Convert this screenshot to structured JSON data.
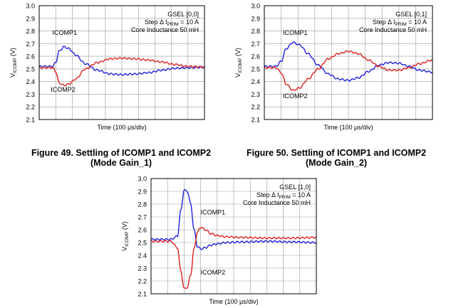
{
  "chart_data": [
    {
      "type": "line",
      "figure_caption": [
        "Figure 49.  Settling of ICOMP1 and ICOMP2",
        "(Mode Gain_1)"
      ],
      "xlabel": "Time (100 μs/div)",
      "ylabel": {
        "main": "V",
        "sub": "ICOMP",
        "unit": " (V)"
      },
      "ylim": [
        2.1,
        3.0
      ],
      "yticks": [
        "3.0",
        "2.9",
        "2.8",
        "2.7",
        "2.6",
        "2.5",
        "2.4",
        "2.3",
        "2.2",
        "2.1"
      ],
      "x_divisions": 10,
      "grid": true,
      "info": {
        "line1": "GSEL [0,0]",
        "line2": {
          "pre": "Step  Δ I",
          "sub": "PRIM",
          "post": " = 10 A"
        },
        "line3": "Core Inductance 50 mH"
      },
      "series": [
        {
          "name": "ICOMP1",
          "color": "#1f1fe0",
          "x": [
            0.0,
            0.4,
            0.8,
            1.0,
            1.2,
            1.5,
            1.8,
            2.2,
            2.8,
            3.5,
            4.3,
            5.0,
            5.8,
            6.6,
            7.4,
            8.2,
            9.0,
            10.0
          ],
          "values": [
            2.52,
            2.52,
            2.52,
            2.55,
            2.64,
            2.675,
            2.66,
            2.61,
            2.54,
            2.49,
            2.46,
            2.455,
            2.46,
            2.47,
            2.49,
            2.505,
            2.51,
            2.515
          ]
        },
        {
          "name": "ICOMP2",
          "color": "#e02020",
          "x": [
            0.0,
            0.4,
            0.8,
            1.0,
            1.2,
            1.5,
            1.8,
            2.2,
            2.8,
            3.5,
            4.3,
            5.0,
            5.8,
            6.6,
            7.4,
            8.2,
            9.0,
            10.0
          ],
          "values": [
            2.51,
            2.51,
            2.51,
            2.48,
            2.39,
            2.37,
            2.38,
            2.42,
            2.5,
            2.55,
            2.58,
            2.585,
            2.58,
            2.57,
            2.555,
            2.535,
            2.52,
            2.515
          ]
        }
      ],
      "series_labels": [
        {
          "text": "ICOMP1",
          "x": 0.8,
          "y": 2.77
        },
        {
          "text": "ICOMP2",
          "x": 0.7,
          "y": 2.32
        }
      ]
    },
    {
      "type": "line",
      "figure_caption": [
        "Figure 50.  Settling of ICOMP1 and ICOMP2",
        "(Mode Gain_2)"
      ],
      "xlabel": "Time (100 μs/div)",
      "ylabel": {
        "main": "V",
        "sub": "ICOMP",
        "unit": " (V)"
      },
      "ylim": [
        2.1,
        3.0
      ],
      "yticks": [
        "3.0",
        "2.9",
        "2.8",
        "2.7",
        "2.6",
        "2.5",
        "2.4",
        "2.3",
        "2.2",
        "2.1"
      ],
      "x_divisions": 10,
      "grid": true,
      "info": {
        "line1": "GSEL [0,1]",
        "line2": {
          "pre": "Step  Δ I",
          "sub": "PRIM",
          "post": " = 10 A"
        },
        "line3": "Core Inductance 50 mH"
      },
      "series": [
        {
          "name": "ICOMP1",
          "color": "#1f1fe0",
          "x": [
            0.0,
            0.7,
            1.0,
            1.3,
            1.7,
            2.1,
            2.6,
            3.2,
            3.8,
            4.4,
            5.0,
            5.6,
            6.2,
            6.8,
            7.4,
            8.0,
            8.6,
            9.2,
            10.0
          ],
          "values": [
            2.52,
            2.52,
            2.56,
            2.66,
            2.71,
            2.69,
            2.62,
            2.53,
            2.46,
            2.42,
            2.41,
            2.43,
            2.48,
            2.53,
            2.55,
            2.545,
            2.52,
            2.49,
            2.475
          ]
        },
        {
          "name": "ICOMP2",
          "color": "#e02020",
          "x": [
            0.0,
            0.7,
            1.0,
            1.3,
            1.7,
            2.1,
            2.6,
            3.2,
            3.8,
            4.4,
            5.0,
            5.6,
            6.2,
            6.8,
            7.4,
            8.0,
            8.6,
            9.2,
            10.0
          ],
          "values": [
            2.51,
            2.51,
            2.47,
            2.38,
            2.33,
            2.35,
            2.42,
            2.5,
            2.58,
            2.62,
            2.64,
            2.62,
            2.57,
            2.52,
            2.49,
            2.49,
            2.51,
            2.54,
            2.57
          ]
        }
      ],
      "series_labels": [
        {
          "text": "ICOMP1",
          "x": 1.1,
          "y": 2.77
        },
        {
          "text": "ICOMP2",
          "x": 1.1,
          "y": 2.27
        }
      ]
    },
    {
      "type": "line",
      "xlabel": "Time (100 μs/div)",
      "ylabel": {
        "main": "V",
        "sub": "ICOMP",
        "unit": " (V)"
      },
      "ylim": [
        2.1,
        3.0
      ],
      "yticks": [
        "3.0",
        "2.9",
        "2.8",
        "2.7",
        "2.6",
        "2.5",
        "2.4",
        "2.3",
        "2.2",
        "2.1"
      ],
      "x_divisions": 10,
      "grid": true,
      "info": {
        "line1": "GSEL [1,0]",
        "line2": {
          "pre": "Step  Δ I",
          "sub": "PRIM",
          "post": " = 10 A"
        },
        "line3": "Core Inductance 50 mH"
      },
      "series": [
        {
          "name": "ICOMP1",
          "color": "#1f1fe0",
          "x": [
            0.0,
            1.2,
            1.6,
            1.8,
            2.0,
            2.2,
            2.4,
            2.6,
            2.8,
            3.0,
            3.3,
            3.6,
            4.0,
            4.5,
            5.5,
            7.0,
            8.5,
            10.0
          ],
          "values": [
            2.525,
            2.525,
            2.55,
            2.75,
            2.91,
            2.9,
            2.8,
            2.6,
            2.47,
            2.45,
            2.46,
            2.48,
            2.49,
            2.5,
            2.505,
            2.51,
            2.505,
            2.5
          ]
        },
        {
          "name": "ICOMP2",
          "color": "#e02020",
          "x": [
            0.0,
            1.2,
            1.6,
            1.8,
            2.0,
            2.2,
            2.4,
            2.6,
            2.8,
            3.0,
            3.3,
            3.6,
            4.0,
            4.5,
            5.5,
            7.0,
            8.5,
            10.0
          ],
          "values": [
            2.51,
            2.51,
            2.46,
            2.28,
            2.14,
            2.15,
            2.25,
            2.45,
            2.58,
            2.62,
            2.6,
            2.57,
            2.555,
            2.545,
            2.54,
            2.535,
            2.535,
            2.54
          ]
        }
      ],
      "series_labels": [
        {
          "text": "ICOMP1",
          "x": 3.0,
          "y": 2.72
        },
        {
          "text": "ICOMP2",
          "x": 3.0,
          "y": 2.25
        }
      ]
    }
  ]
}
